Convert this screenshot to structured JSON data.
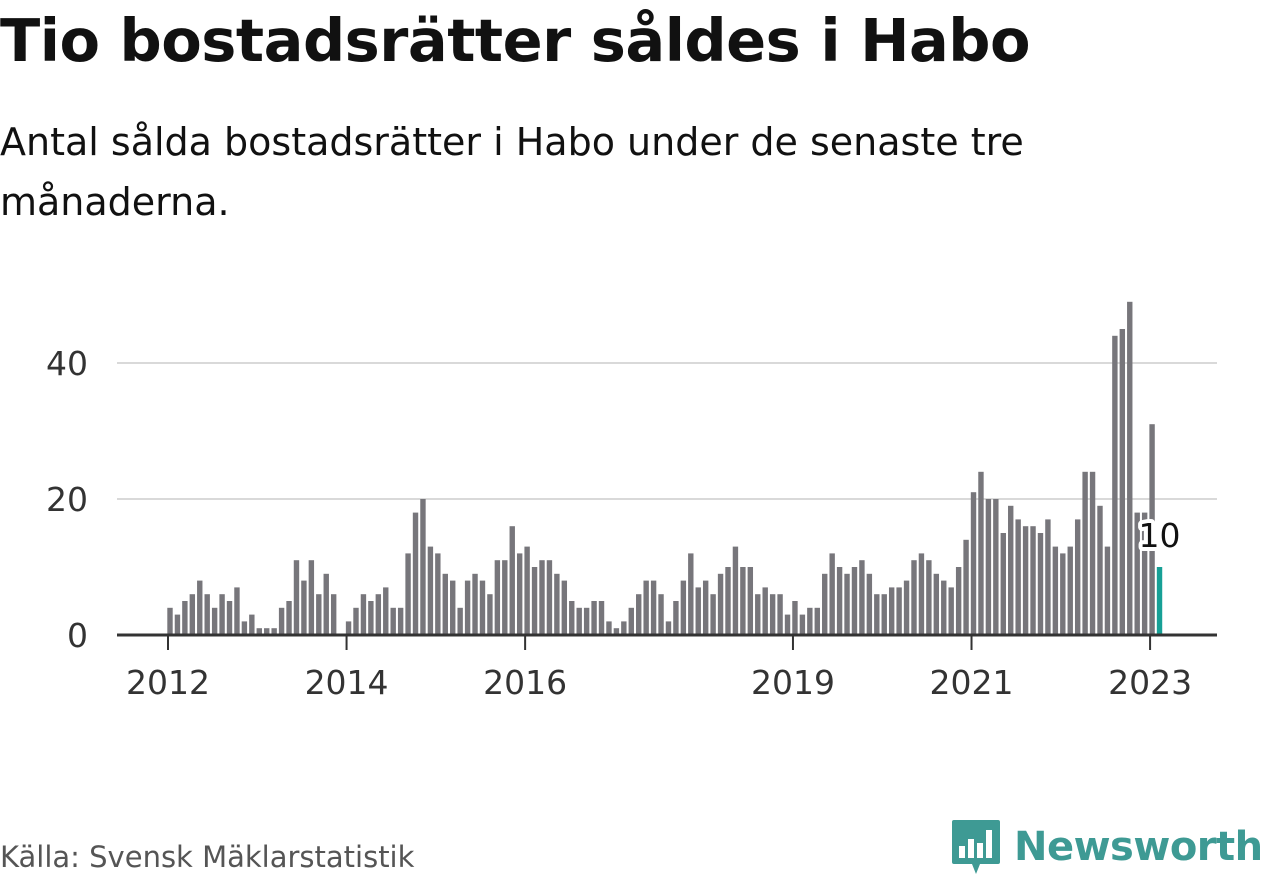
{
  "header": {
    "title": "Tio bostadsrätter såldes i Habo",
    "subtitle": "Antal sålda bostadsrätter i Habo under de senaste tre månaderna."
  },
  "footer": {
    "source": "Källa: Svensk Mäklarstatistik",
    "brand": "Newsworthy"
  },
  "colors": {
    "bar": "#77767b",
    "highlight": "#17a096",
    "grid": "#d9d9d9",
    "axis": "#333333",
    "brand": "#3e9a94"
  },
  "chart_data": {
    "type": "bar",
    "title": "Tio bostadsrätter såldes i Habo",
    "xlabel": "",
    "ylabel": "",
    "ylim": [
      0,
      49
    ],
    "yticks": [
      0,
      20,
      40
    ],
    "grid": true,
    "start": "2012-01",
    "end": "2023-02",
    "xticks": [
      {
        "label": "2012",
        "index": 0
      },
      {
        "label": "2014",
        "index": 24
      },
      {
        "label": "2016",
        "index": 48
      },
      {
        "label": "2019",
        "index": 84
      },
      {
        "label": "2021",
        "index": 108
      },
      {
        "label": "2023",
        "index": 132
      }
    ],
    "values": [
      4,
      3,
      5,
      6,
      8,
      6,
      4,
      6,
      5,
      7,
      2,
      3,
      1,
      1,
      1,
      4,
      5,
      11,
      8,
      11,
      6,
      9,
      6,
      0,
      2,
      4,
      6,
      5,
      6,
      7,
      4,
      4,
      12,
      18,
      20,
      13,
      12,
      9,
      8,
      4,
      8,
      9,
      8,
      6,
      11,
      11,
      16,
      12,
      13,
      10,
      11,
      11,
      9,
      8,
      5,
      4,
      4,
      5,
      5,
      2,
      1,
      2,
      4,
      6,
      8,
      8,
      6,
      2,
      5,
      8,
      12,
      7,
      8,
      6,
      9,
      10,
      13,
      10,
      10,
      6,
      7,
      6,
      6,
      3,
      5,
      3,
      4,
      4,
      9,
      12,
      10,
      9,
      10,
      11,
      9,
      6,
      6,
      7,
      7,
      8,
      11,
      12,
      11,
      9,
      8,
      7,
      10,
      14,
      21,
      24,
      20,
      20,
      15,
      19,
      17,
      16,
      16,
      15,
      17,
      13,
      12,
      13,
      17,
      24,
      24,
      19,
      13,
      44,
      45,
      49,
      18,
      18,
      31,
      10
    ],
    "highlight_index": 133,
    "highlight_label": "10"
  }
}
